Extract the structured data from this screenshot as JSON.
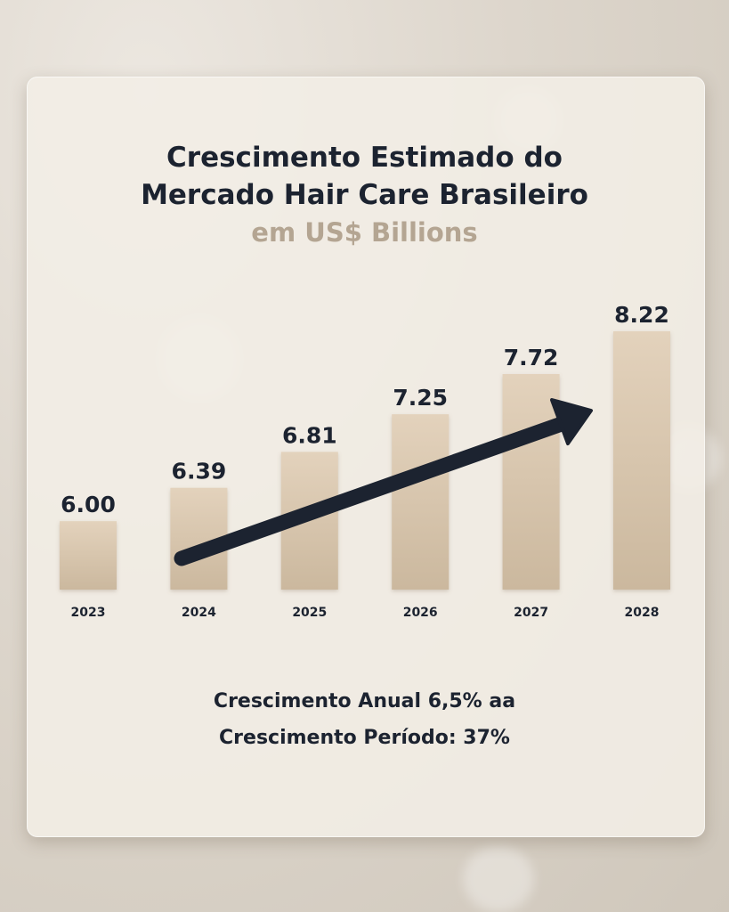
{
  "chart_data": {
    "type": "bar",
    "title": "Crescimento Estimado do Mercado Hair Care Brasileiro",
    "title_lines": [
      "Crescimento Estimado do",
      "Mercado Hair Care Brasileiro"
    ],
    "subtitle": "em US$ Billions",
    "categories": [
      "2023",
      "2024",
      "2025",
      "2026",
      "2027",
      "2028"
    ],
    "values": [
      6.0,
      6.39,
      6.81,
      7.25,
      7.72,
      8.22
    ],
    "value_labels": [
      "6.00",
      "6.39",
      "6.81",
      "7.25",
      "7.72",
      "8.22"
    ],
    "ylim": [
      5.2,
      8.22
    ],
    "grid": false,
    "legend": "none",
    "annotation": "upward trend arrow"
  },
  "footer": {
    "line1": "Crescimento Anual 6,5% aa",
    "line2": "Crescimento Período: 37%"
  },
  "colors": {
    "bar_top": "#e3d2bc",
    "bar_bottom": "#cbb89e",
    "text_dark": "#1c2330",
    "subtitle": "#b4a592",
    "arrow": "#1c2330"
  }
}
